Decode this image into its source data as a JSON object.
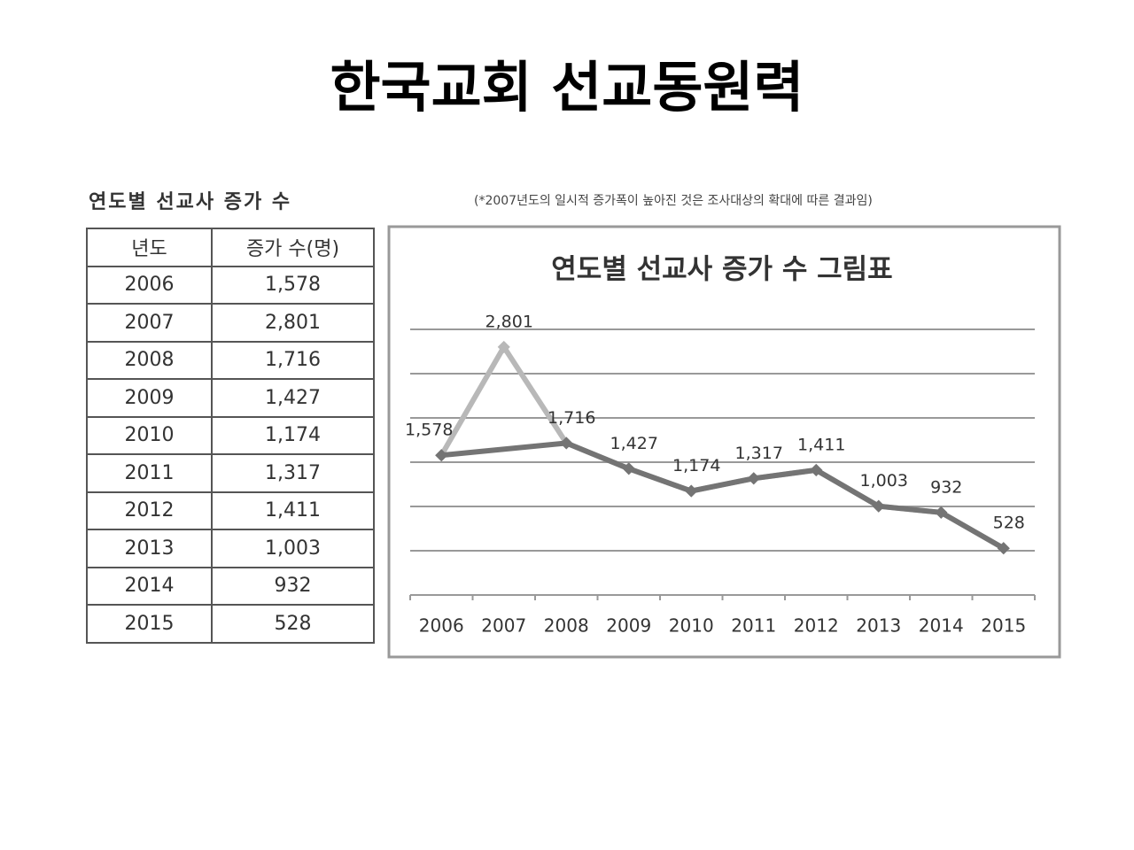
{
  "title": "한국교회 선교동원력",
  "table": {
    "caption": "연도별 선교사 증가 수",
    "header": [
      "년도",
      "증가 수(명)"
    ],
    "rows": [
      [
        "2006",
        "1,578"
      ],
      [
        "2007",
        "2,801"
      ],
      [
        "2008",
        "1,716"
      ],
      [
        "2009",
        "1,427"
      ],
      [
        "2010",
        "1,174"
      ],
      [
        "2011",
        "1,317"
      ],
      [
        "2012",
        "1,411"
      ],
      [
        "2013",
        "1,003"
      ],
      [
        "2014",
        "932"
      ],
      [
        "2015",
        "528"
      ]
    ]
  },
  "note": "(*2007년도의 일시적 증가폭이 높아진 것은 조사대상의 확대에 따른 결과임)",
  "chart_data": {
    "type": "line",
    "title": "연도별 선교사 증가 수 그림표",
    "categories": [
      "2006",
      "2007",
      "2008",
      "2009",
      "2010",
      "2011",
      "2012",
      "2013",
      "2014",
      "2015"
    ],
    "ylim": [
      0,
      3000
    ],
    "yticks": [
      0,
      500,
      1000,
      1500,
      2000,
      2500,
      3000
    ],
    "grid": true,
    "series": [
      {
        "color": "#b8b8b8",
        "values": [
          1578,
          2801,
          1716,
          1427,
          1174,
          1317,
          1411,
          1003,
          932,
          528
        ],
        "value_labels": [
          "1,578",
          "2,801",
          "1,716",
          "1,427",
          "1,174",
          "1,317",
          "1,411",
          "1,003",
          "932",
          "528"
        ]
      },
      {
        "color": "#747474",
        "x": [
          "2006",
          "2008",
          "2009",
          "2010",
          "2011",
          "2012",
          "2013",
          "2014",
          "2015"
        ],
        "values": [
          1578,
          1716,
          1427,
          1174,
          1317,
          1411,
          1003,
          932,
          528
        ]
      }
    ]
  }
}
